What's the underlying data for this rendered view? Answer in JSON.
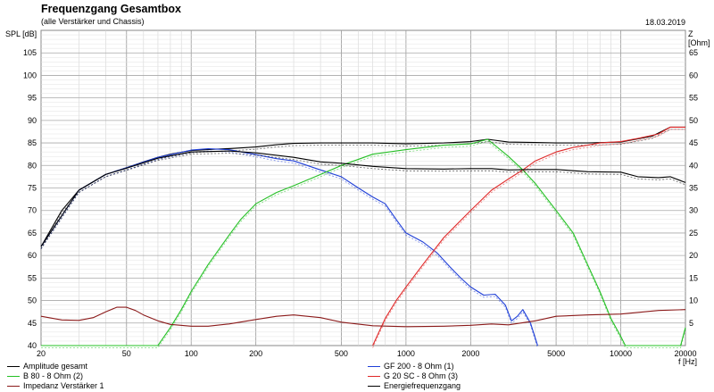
{
  "header": {
    "title": "Frequenzgang Gesamtbox",
    "subtitle": "(alle Verstärker und Chassis)",
    "date": "18.03.2019"
  },
  "chart_data": {
    "type": "line",
    "xscale": "log",
    "xlim": [
      20,
      20000
    ],
    "x_ticks": [
      20,
      50,
      100,
      200,
      500,
      1000,
      2000,
      5000,
      10000,
      20000
    ],
    "x_tick_labels": [
      "20",
      "50",
      "100",
      "200",
      "500",
      "1000",
      "2000",
      "5000",
      "10000",
      "20000"
    ],
    "xlabel": "f [Hz]",
    "ylim_left": [
      40,
      110
    ],
    "y_ticks_left": [
      40,
      45,
      50,
      55,
      60,
      65,
      70,
      75,
      80,
      85,
      90,
      95,
      100,
      105
    ],
    "ylabel_left": "SPL [dB]",
    "ylim_right": [
      0,
      70
    ],
    "y_ticks_right": [
      5,
      10,
      15,
      20,
      25,
      30,
      35,
      40,
      45,
      50,
      55,
      60,
      65
    ],
    "ylabel_right": "Z [Ohm]",
    "grid": true,
    "legend_position": "bottom",
    "series": [
      {
        "name": "Amplitude gesamt",
        "color": "#000000",
        "axis": "left",
        "points": [
          [
            20,
            62
          ],
          [
            25,
            70
          ],
          [
            30,
            74.5
          ],
          [
            40,
            78
          ],
          [
            50,
            79.5
          ],
          [
            60,
            80.8
          ],
          [
            70,
            81.8
          ],
          [
            80,
            82.5
          ],
          [
            100,
            83.3
          ],
          [
            130,
            83.6
          ],
          [
            160,
            83.8
          ],
          [
            200,
            84.1
          ],
          [
            250,
            84.6
          ],
          [
            300,
            84.9
          ],
          [
            400,
            85
          ],
          [
            500,
            85
          ],
          [
            700,
            85
          ],
          [
            1000,
            84.8
          ],
          [
            1500,
            85
          ],
          [
            2000,
            85.3
          ],
          [
            2400,
            85.8
          ],
          [
            3000,
            85.2
          ],
          [
            4000,
            85.1
          ],
          [
            5000,
            85
          ],
          [
            7000,
            85
          ],
          [
            10000,
            85.2
          ],
          [
            14000,
            86.5
          ],
          [
            17000,
            88.5
          ],
          [
            20000,
            88.5
          ]
        ]
      },
      {
        "name": "GF 200 - 8 Ohm (1)",
        "color": "#1f3fd8",
        "axis": "left",
        "points": [
          [
            20,
            62
          ],
          [
            30,
            74.5
          ],
          [
            40,
            78
          ],
          [
            50,
            79.5
          ],
          [
            70,
            81.8
          ],
          [
            100,
            83.4
          ],
          [
            120,
            83.7
          ],
          [
            150,
            83.5
          ],
          [
            200,
            82.4
          ],
          [
            250,
            81.5
          ],
          [
            300,
            81
          ],
          [
            400,
            79
          ],
          [
            500,
            77.5
          ],
          [
            600,
            75
          ],
          [
            700,
            73
          ],
          [
            800,
            71.5
          ],
          [
            900,
            68
          ],
          [
            1000,
            65
          ],
          [
            1200,
            63
          ],
          [
            1400,
            60.5
          ],
          [
            1600,
            57.5
          ],
          [
            1800,
            55
          ],
          [
            2000,
            53
          ],
          [
            2300,
            51.2
          ],
          [
            2600,
            51.4
          ],
          [
            2900,
            49
          ],
          [
            3100,
            45.5
          ],
          [
            3300,
            46.5
          ],
          [
            3500,
            48
          ],
          [
            3800,
            45
          ],
          [
            4100,
            40
          ]
        ]
      },
      {
        "name": "B 80 - 8 Ohm (2)",
        "color": "#25c025",
        "axis": "left",
        "points": [
          [
            20,
            40
          ],
          [
            70,
            40
          ],
          [
            80,
            44
          ],
          [
            90,
            48
          ],
          [
            100,
            52
          ],
          [
            120,
            58
          ],
          [
            150,
            64.5
          ],
          [
            170,
            68
          ],
          [
            200,
            71.5
          ],
          [
            250,
            74
          ],
          [
            300,
            75.5
          ],
          [
            400,
            78
          ],
          [
            500,
            80
          ],
          [
            700,
            82.5
          ],
          [
            1000,
            83.5
          ],
          [
            1500,
            84.5
          ],
          [
            2000,
            84.8
          ],
          [
            2400,
            85.8
          ],
          [
            3000,
            82
          ],
          [
            3500,
            79
          ],
          [
            4000,
            76
          ],
          [
            5000,
            70
          ],
          [
            6000,
            65
          ],
          [
            7000,
            58
          ],
          [
            8000,
            52
          ],
          [
            9000,
            46
          ],
          [
            10000,
            42
          ],
          [
            10500,
            40
          ],
          [
            19000,
            40
          ],
          [
            20000,
            44
          ]
        ]
      },
      {
        "name": "G 20 SC - 8 Ohm (3)",
        "color": "#e02828",
        "axis": "left",
        "points": [
          [
            700,
            40
          ],
          [
            800,
            46
          ],
          [
            900,
            50
          ],
          [
            1000,
            53
          ],
          [
            1200,
            58
          ],
          [
            1500,
            64
          ],
          [
            2000,
            70
          ],
          [
            2500,
            74.5
          ],
          [
            3000,
            77
          ],
          [
            3500,
            79
          ],
          [
            4000,
            81
          ],
          [
            5000,
            83
          ],
          [
            6000,
            84
          ],
          [
            7000,
            84.5
          ],
          [
            8000,
            85
          ],
          [
            10000,
            85.3
          ],
          [
            12000,
            86
          ],
          [
            15000,
            87
          ],
          [
            17000,
            88.5
          ],
          [
            20000,
            88.5
          ]
        ]
      },
      {
        "name": "Impedanz Verstärker 1",
        "color": "#8b1a1a",
        "axis": "right",
        "points": [
          [
            20,
            6.5
          ],
          [
            25,
            5.7
          ],
          [
            30,
            5.6
          ],
          [
            35,
            6.2
          ],
          [
            40,
            7.5
          ],
          [
            45,
            8.5
          ],
          [
            50,
            8.5
          ],
          [
            55,
            7.8
          ],
          [
            60,
            6.8
          ],
          [
            70,
            5.5
          ],
          [
            80,
            4.7
          ],
          [
            100,
            4.3
          ],
          [
            120,
            4.3
          ],
          [
            150,
            4.8
          ],
          [
            200,
            5.8
          ],
          [
            250,
            6.5
          ],
          [
            300,
            6.8
          ],
          [
            400,
            6.2
          ],
          [
            500,
            5.2
          ],
          [
            700,
            4.4
          ],
          [
            1000,
            4.2
          ],
          [
            1500,
            4.3
          ],
          [
            2000,
            4.5
          ],
          [
            2500,
            4.8
          ],
          [
            3000,
            4.6
          ],
          [
            4000,
            5.5
          ],
          [
            5000,
            6.5
          ],
          [
            7000,
            6.8
          ],
          [
            10000,
            7
          ],
          [
            15000,
            7.8
          ],
          [
            20000,
            8
          ]
        ]
      },
      {
        "name": "Energiefrequenzgang",
        "color": "#000000",
        "axis": "left",
        "points": [
          [
            20,
            62
          ],
          [
            30,
            74.5
          ],
          [
            40,
            78
          ],
          [
            50,
            79.4
          ],
          [
            70,
            81.6
          ],
          [
            100,
            83
          ],
          [
            150,
            83.2
          ],
          [
            200,
            82.8
          ],
          [
            300,
            81.8
          ],
          [
            400,
            80.8
          ],
          [
            500,
            80.5
          ],
          [
            700,
            79.8
          ],
          [
            1000,
            79.3
          ],
          [
            1500,
            79.2
          ],
          [
            2000,
            79.3
          ],
          [
            2500,
            79.3
          ],
          [
            3000,
            79
          ],
          [
            4000,
            79.1
          ],
          [
            5000,
            79.1
          ],
          [
            7000,
            78.6
          ],
          [
            10000,
            78.5
          ],
          [
            12000,
            77.5
          ],
          [
            15000,
            77.3
          ],
          [
            17000,
            77.5
          ],
          [
            20000,
            76.2
          ]
        ]
      }
    ]
  },
  "legend": [
    {
      "label": "Amplitude gesamt",
      "color": "#000000"
    },
    {
      "label": "B 80 - 8 Ohm (2)",
      "color": "#25c025"
    },
    {
      "label": "Impedanz Verstärker 1",
      "color": "#8b1a1a"
    },
    {
      "label": "GF 200 - 8 Ohm (1)",
      "color": "#1f3fd8"
    },
    {
      "label": "G 20 SC - 8 Ohm (3)",
      "color": "#e02828"
    },
    {
      "label": "Energiefrequenzgang",
      "color": "#000000"
    }
  ]
}
